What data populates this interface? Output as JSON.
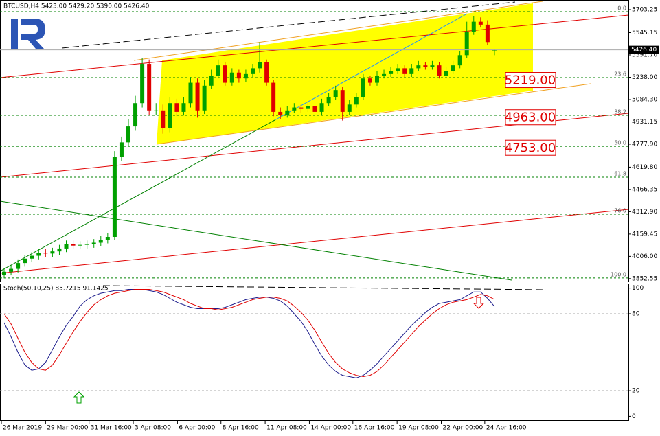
{
  "chart_data": [
    {
      "type": "candlestick",
      "title": "BTCUSD,H4  5423.00 5429.20 5390.00 5426.40",
      "up_color": "#00a000",
      "down_color": "#e00000",
      "open": [
        3880,
        3900,
        3920,
        3960,
        3990,
        4010,
        4030,
        4025,
        4040,
        4060,
        4090,
        4080,
        4085,
        4090,
        4100,
        4120,
        4140,
        4690,
        4790,
        4900,
        5060,
        5330,
        5010,
        5010,
        4890,
        5060,
        5000,
        5060,
        5200,
        5010,
        5180,
        5250,
        5320,
        5200,
        5270,
        5230,
        5260,
        5300,
        5340,
        5200,
        5000,
        4980,
        5010,
        5030,
        5020,
        5040,
        5000,
        5060,
        5100,
        5150,
        5000,
        5050,
        5100,
        5230,
        5200,
        5250,
        5260,
        5280,
        5300,
        5260,
        5300,
        5320,
        5310,
        5320,
        5250,
        5280,
        5320,
        5390,
        5550,
        5620,
        5600,
        5423
      ],
      "high": [
        3925,
        3945,
        3985,
        4015,
        4035,
        4055,
        4055,
        4065,
        4085,
        4115,
        4115,
        4110,
        4115,
        4125,
        4145,
        4165,
        4730,
        4830,
        4950,
        5110,
        5370,
        5360,
        5060,
        5050,
        5100,
        5090,
        5100,
        5240,
        5230,
        5220,
        5290,
        5360,
        5340,
        5300,
        5290,
        5290,
        5330,
        5480,
        5360,
        5220,
        5030,
        5040,
        5060,
        5050,
        5070,
        5060,
        5090,
        5130,
        5180,
        5170,
        5080,
        5130,
        5260,
        5250,
        5280,
        5290,
        5310,
        5330,
        5320,
        5330,
        5350,
        5340,
        5350,
        5340,
        5310,
        5350,
        5420,
        5620,
        5660,
        5650,
        5630,
        5429.2
      ],
      "low": [
        3855,
        3875,
        3895,
        3935,
        3965,
        3985,
        4000,
        4000,
        4015,
        4035,
        4055,
        4055,
        4060,
        4065,
        4075,
        4095,
        4120,
        4660,
        4760,
        4870,
        5030,
        4980,
        4980,
        4850,
        4860,
        4970,
        4975,
        5030,
        4960,
        4985,
        5160,
        5230,
        5180,
        5180,
        5200,
        5205,
        5240,
        5270,
        5180,
        4970,
        4950,
        4960,
        4990,
        4995,
        5000,
        4975,
        4980,
        5040,
        5080,
        4940,
        4980,
        5030,
        5080,
        5180,
        5180,
        5230,
        5240,
        5260,
        5240,
        5240,
        5280,
        5290,
        5290,
        5230,
        5230,
        5260,
        5300,
        5370,
        5530,
        5580,
        5460,
        5390
      ],
      "close": [
        3900,
        3920,
        3960,
        3990,
        4010,
        4030,
        4025,
        4040,
        4060,
        4090,
        4080,
        4085,
        4090,
        4100,
        4120,
        4140,
        4690,
        4790,
        4900,
        5060,
        5330,
        5010,
        5010,
        4890,
        5060,
        5000,
        5060,
        5200,
        5010,
        5180,
        5250,
        5320,
        5200,
        5270,
        5230,
        5260,
        5300,
        5340,
        5200,
        5000,
        4980,
        5010,
        5030,
        5020,
        5040,
        5000,
        5060,
        5100,
        5150,
        5000,
        5050,
        5100,
        5230,
        5200,
        5250,
        5260,
        5280,
        5300,
        5260,
        5300,
        5320,
        5310,
        5320,
        5250,
        5280,
        5320,
        5390,
        5550,
        5620,
        5600,
        5480,
        5426.4
      ],
      "xlim": [
        -0.2,
        90.4
      ],
      "xticks": [
        {
          "value": -0.4,
          "label": "26 Mar 2019"
        },
        {
          "value": 6.0,
          "label": "29 Mar 00:00"
        },
        {
          "value": 12.3,
          "label": "31 Mar 16:00"
        },
        {
          "value": 18.7,
          "label": "3 Apr 08:00"
        },
        {
          "value": 25.1,
          "label": "6 Apr 00:00"
        },
        {
          "value": 31.4,
          "label": "8 Apr 16:00"
        },
        {
          "value": 37.8,
          "label": "11 Apr 08:00"
        },
        {
          "value": 44.2,
          "label": "14 Apr 00:00"
        },
        {
          "value": 50.5,
          "label": "16 Apr 16:00"
        },
        {
          "value": 56.9,
          "label": "19 Apr 08:00"
        },
        {
          "value": 63.3,
          "label": "22 Apr 00:00"
        },
        {
          "value": 69.6,
          "label": "24 Apr 16:00"
        }
      ],
      "ylim": [
        3833,
        5760
      ],
      "yticks": [
        5703.25,
        5545.15,
        {
          "value": 5391.7,
          "label": "5391.70"
        },
        {
          "value": 5238,
          "label": "5238.00"
        },
        {
          "value": 5084.3,
          "label": "5084.30"
        },
        4931.15,
        {
          "value": 4777.9,
          "label": "4777.90"
        },
        {
          "value": 4619.8,
          "label": "4619.80"
        },
        4466.35,
        {
          "value": 4312.9,
          "label": "4312.90"
        },
        4159.45,
        {
          "value": 4006,
          "label": "4006.00"
        },
        3852.55
      ],
      "current_price": {
        "value": 5426.4,
        "label": "5426.40"
      },
      "fib_levels": [
        {
          "label": "0.0",
          "price": 5689
        },
        {
          "label": "23.6",
          "price": 5236
        },
        {
          "label": "38.2",
          "price": 4976
        },
        {
          "label": "50.0",
          "price": 4763
        },
        {
          "label": "61.8",
          "price": 4551
        },
        {
          "label": "76.0",
          "price": 4296
        },
        {
          "label": "100.0",
          "price": 3857
        }
      ],
      "annotations": [
        {
          "value": 5219,
          "label": "5219.00"
        },
        {
          "value": 4963,
          "label": "4963.00"
        },
        {
          "value": 4753,
          "label": "4753.00"
        }
      ]
    },
    {
      "type": "line",
      "title": "Stoch(50,10,25) 85.7215 91.1425",
      "ylim": [
        -3,
        103
      ],
      "yticks": [
        100,
        80,
        20,
        0
      ],
      "levels": [
        80,
        20
      ],
      "series": [
        {
          "color": "#1c1c8c",
          "values": [
            73,
            62,
            50,
            40,
            36,
            37,
            42,
            52,
            62,
            71,
            78,
            86,
            91,
            94,
            96,
            97,
            98,
            98,
            99,
            99,
            99,
            98,
            97,
            95,
            92,
            89,
            87,
            85,
            84,
            84,
            84,
            84,
            85,
            87,
            89,
            91,
            92,
            93,
            93,
            92,
            90,
            86,
            80,
            74,
            66,
            56,
            47,
            40,
            35,
            32,
            31,
            30,
            32,
            36,
            41,
            47,
            53,
            59,
            65,
            71,
            76,
            81,
            85,
            88,
            89,
            90,
            91,
            94,
            97,
            97,
            92,
            85.7215
          ]
        },
        {
          "color": "#e00000",
          "values": [
            80,
            72,
            61,
            50,
            42,
            37,
            36,
            40,
            48,
            57,
            66,
            74,
            81,
            87,
            91,
            94,
            96,
            97,
            98,
            99,
            99,
            99,
            98,
            97,
            95,
            93,
            91,
            88,
            86,
            84,
            84,
            83,
            84,
            85,
            87,
            89,
            91,
            92,
            93,
            93,
            92,
            90,
            86,
            81,
            75,
            67,
            58,
            49,
            42,
            37,
            34,
            32,
            31,
            32,
            35,
            40,
            46,
            52,
            58,
            64,
            70,
            75,
            80,
            84,
            87,
            89,
            90,
            91,
            93,
            95,
            94,
            91.1425
          ]
        }
      ]
    }
  ]
}
